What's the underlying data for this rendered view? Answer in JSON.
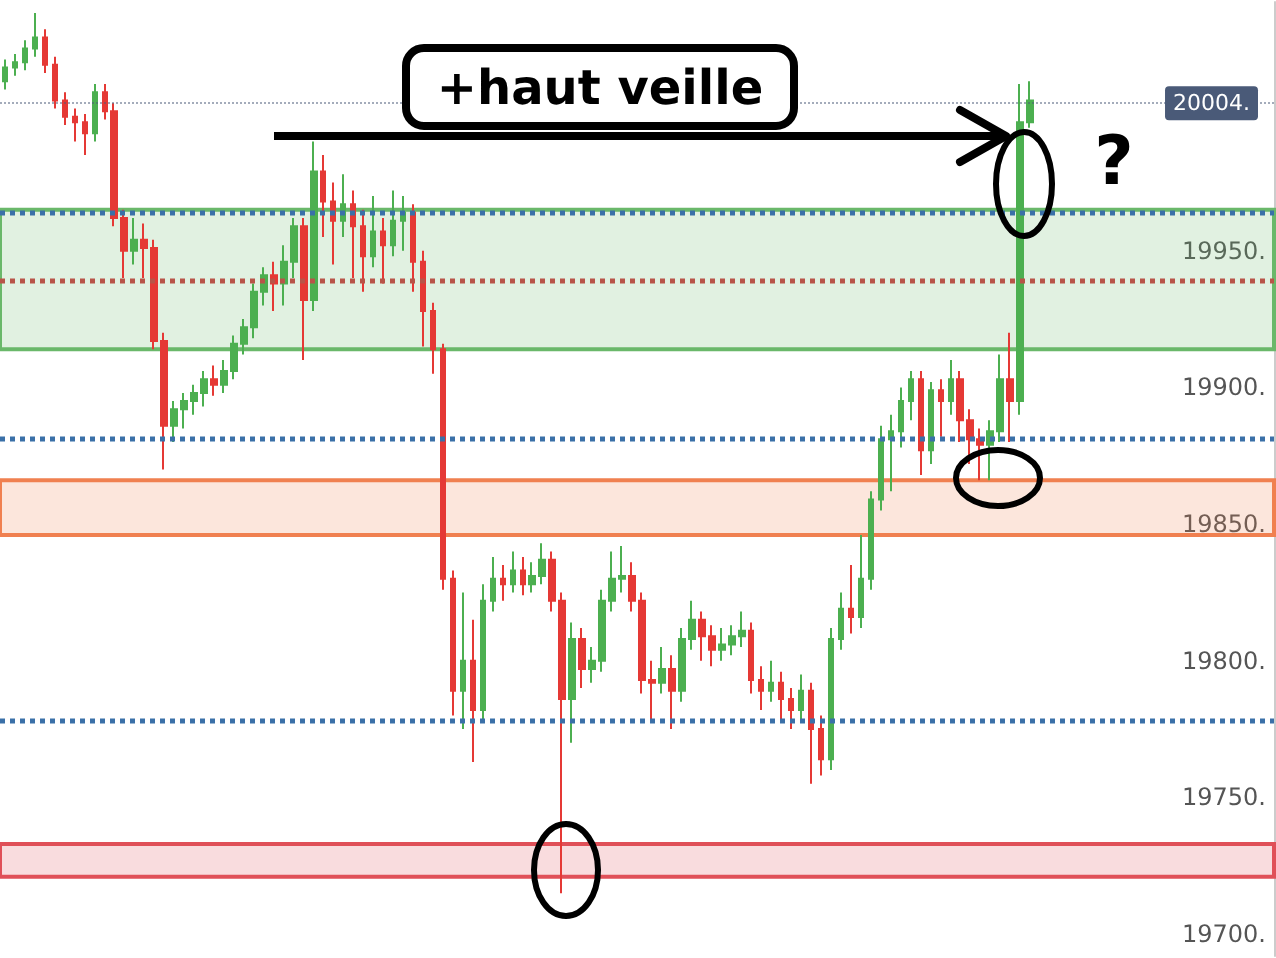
{
  "chart_data": {
    "type": "candlestick",
    "categories": [
      null,
      null,
      null,
      null,
      null,
      null,
      null,
      null,
      null,
      null,
      null,
      null,
      null,
      null,
      null,
      null,
      null,
      null,
      null,
      null,
      null,
      null,
      null,
      null,
      null,
      null,
      null,
      null,
      null,
      null,
      null,
      null,
      null,
      null,
      null,
      null,
      null,
      null,
      null,
      null,
      null,
      null,
      null,
      null,
      null,
      null,
      null,
      null,
      null,
      null,
      null,
      null,
      null,
      null,
      null,
      null,
      null,
      null,
      null,
      null,
      null,
      null,
      null,
      null,
      null,
      null,
      null,
      null,
      null,
      null,
      null,
      null,
      null,
      null,
      null,
      null,
      null,
      null,
      null,
      null,
      null,
      null,
      null,
      null,
      null,
      null,
      null,
      null,
      null,
      null,
      null,
      null,
      null,
      null,
      null,
      null,
      null,
      null,
      null,
      null,
      null,
      null,
      null,
      null,
      null,
      null,
      null,
      null,
      null,
      null,
      null,
      null,
      null,
      null,
      null,
      null,
      null,
      null,
      null,
      null,
      null,
      null,
      null,
      null,
      null,
      null,
      null,
      null
    ],
    "ohlc": [
      [
        20012,
        20020,
        20009,
        20017
      ],
      [
        20017,
        20022,
        20014,
        20019
      ],
      [
        20019,
        20027,
        20016,
        20024
      ],
      [
        20024,
        20037,
        20021,
        20028
      ],
      [
        20028,
        20031,
        20015,
        20018
      ],
      [
        20018,
        20021,
        20002,
        20005
      ],
      [
        20005,
        20008,
        19996,
        19999
      ],
      [
        19999,
        20002,
        19990,
        19997
      ],
      [
        19997,
        20000,
        19985,
        19993
      ],
      [
        19993,
        20011,
        19990,
        20008
      ],
      [
        20008,
        20011,
        19998,
        20001
      ],
      [
        20001,
        20004,
        19959,
        19962
      ],
      [
        19962,
        19965,
        19940,
        19950
      ],
      [
        19950,
        19962,
        19945,
        19954
      ],
      [
        19954,
        19960,
        19940,
        19951
      ],
      [
        19951,
        19954,
        19914,
        19917
      ],
      [
        19917,
        19920,
        19870,
        19886
      ],
      [
        19886,
        19895,
        19880,
        19892
      ],
      [
        19892,
        19898,
        19885,
        19895
      ],
      [
        19895,
        19901,
        19890,
        19898
      ],
      [
        19898,
        19906,
        19893,
        19903
      ],
      [
        19903,
        19908,
        19897,
        19901
      ],
      [
        19901,
        19910,
        19898,
        19906
      ],
      [
        19906,
        19919,
        19903,
        19916
      ],
      [
        19916,
        19925,
        19912,
        19922
      ],
      [
        19922,
        19938,
        19918,
        19935
      ],
      [
        19935,
        19944,
        19930,
        19941
      ],
      [
        19941,
        19946,
        19928,
        19938
      ],
      [
        19938,
        19952,
        19930,
        19946
      ],
      [
        19946,
        19962,
        19940,
        19959
      ],
      [
        19959,
        19962,
        19910,
        19932
      ],
      [
        19932,
        19990,
        19928,
        19979
      ],
      [
        19979,
        19985,
        19955,
        19968
      ],
      [
        19968,
        19975,
        19945,
        19961
      ],
      [
        19961,
        19978,
        19955,
        19967
      ],
      [
        19967,
        19972,
        19940,
        19959
      ],
      [
        19959,
        19965,
        19935,
        19948
      ],
      [
        19948,
        19970,
        19944,
        19957
      ],
      [
        19957,
        19962,
        19938,
        19952
      ],
      [
        19952,
        19972,
        19948,
        19961
      ],
      [
        19961,
        19970,
        19950,
        19964
      ],
      [
        19964,
        19967,
        19935,
        19946
      ],
      [
        19946,
        19950,
        19915,
        19928
      ],
      [
        19928,
        19931,
        19905,
        19914
      ],
      [
        19914,
        19916,
        19826,
        19830
      ],
      [
        19830,
        19833,
        19780,
        19789
      ],
      [
        19789,
        19825,
        19775,
        19800
      ],
      [
        19800,
        19815,
        19763,
        19782
      ],
      [
        19782,
        19828,
        19778,
        19822
      ],
      [
        19822,
        19838,
        19818,
        19830
      ],
      [
        19830,
        19835,
        19822,
        19828
      ],
      [
        19828,
        19840,
        19825,
        19833
      ],
      [
        19833,
        19838,
        19824,
        19828
      ],
      [
        19828,
        19836,
        19825,
        19831
      ],
      [
        19831,
        19843,
        19828,
        19837
      ],
      [
        19837,
        19840,
        19818,
        19822
      ],
      [
        19822,
        19825,
        19715,
        19786
      ],
      [
        19786,
        19814,
        19770,
        19808
      ],
      [
        19808,
        19812,
        19790,
        19797
      ],
      [
        19797,
        19805,
        19792,
        19800
      ],
      [
        19800,
        19826,
        19796,
        19822
      ],
      [
        19822,
        19840,
        19818,
        19830
      ],
      [
        19830,
        19842,
        19825,
        19831
      ],
      [
        19831,
        19836,
        19818,
        19822
      ],
      [
        19822,
        19825,
        19788,
        19793
      ],
      [
        19793,
        19800,
        19778,
        19792
      ],
      [
        19792,
        19805,
        19788,
        19797
      ],
      [
        19797,
        19802,
        19775,
        19789
      ],
      [
        19789,
        19812,
        19785,
        19808
      ],
      [
        19808,
        19822,
        19804,
        19815
      ],
      [
        19815,
        19818,
        19800,
        19809
      ],
      [
        19809,
        19813,
        19798,
        19804
      ],
      [
        19804,
        19812,
        19800,
        19806
      ],
      [
        19806,
        19813,
        19802,
        19809
      ],
      [
        19809,
        19818,
        19805,
        19811
      ],
      [
        19811,
        19814,
        19788,
        19793
      ],
      [
        19793,
        19798,
        19782,
        19789
      ],
      [
        19789,
        19800,
        19785,
        19792
      ],
      [
        19792,
        19796,
        19778,
        19786
      ],
      [
        19786,
        19790,
        19775,
        19782
      ],
      [
        19782,
        19795,
        19778,
        19789
      ],
      [
        19789,
        19792,
        19755,
        19775
      ],
      [
        19775,
        19780,
        19758,
        19764
      ],
      [
        19764,
        19812,
        19760,
        19808
      ],
      [
        19808,
        19825,
        19804,
        19819
      ],
      [
        19819,
        19835,
        19810,
        19816
      ],
      [
        19816,
        19846,
        19812,
        19830
      ],
      [
        19830,
        19862,
        19826,
        19859
      ],
      [
        19859,
        19886,
        19855,
        19881
      ],
      [
        19881,
        19890,
        19862,
        19884
      ],
      [
        19884,
        19900,
        19878,
        19895
      ],
      [
        19895,
        19906,
        19888,
        19903
      ],
      [
        19903,
        19906,
        19868,
        19877
      ],
      [
        19877,
        19902,
        19872,
        19899
      ],
      [
        19899,
        19903,
        19882,
        19895
      ],
      [
        19895,
        19910,
        19890,
        19903
      ],
      [
        19903,
        19906,
        19880,
        19888
      ],
      [
        19888,
        19892,
        19872,
        19881
      ],
      [
        19881,
        19885,
        19866,
        19879
      ],
      [
        19879,
        19888,
        19866,
        19884
      ],
      [
        19884,
        19912,
        19880,
        19903
      ],
      [
        19903,
        19920,
        19880,
        19895
      ],
      [
        19895,
        20011,
        19890,
        19997
      ],
      [
        19997,
        20012,
        19995,
        20005
      ],
      null,
      null,
      null,
      null,
      null,
      null,
      null,
      null,
      null,
      null,
      null,
      null,
      null,
      null,
      null,
      null,
      null,
      null,
      null,
      null,
      null,
      null,
      null,
      null
    ],
    "ylim": [
      19692,
      20041
    ],
    "yticks": [
      {
        "value": 19700,
        "label": "19700."
      },
      {
        "value": 19750,
        "label": "19750."
      },
      {
        "value": 19800,
        "label": "19800."
      },
      {
        "value": 19850,
        "label": "19850."
      },
      {
        "value": 19900,
        "label": "19900."
      },
      {
        "value": 19950,
        "label": "19950."
      }
    ],
    "tick_labels": "y",
    "grid": false,
    "ref_lines": [
      {
        "axis": "y",
        "value": 19964,
        "color": "#3a70a8",
        "line_style": "dotted"
      },
      {
        "axis": "y",
        "value": 19939,
        "color": "#b85448",
        "line_style": "dotted"
      },
      {
        "axis": "y",
        "value": 19881,
        "color": "#3a70a8",
        "line_style": "dotted"
      },
      {
        "axis": "y",
        "value": 19778,
        "color": "#3a70a8",
        "line_style": "dotted"
      },
      {
        "axis": "y",
        "value": 20004,
        "label": "20004.",
        "color": "#4a5a78",
        "line_style": "dotted"
      }
    ],
    "bands": [
      {
        "axis": "y",
        "from": 19914,
        "to": 19965,
        "color": "#6ab86a"
      },
      {
        "axis": "y",
        "from": 19846,
        "to": 19866,
        "color": "#f08050"
      },
      {
        "axis": "y",
        "from": 19721,
        "to": 19733,
        "color": "#e05058"
      }
    ],
    "annotations": [
      "+haut veille",
      "?"
    ]
  }
}
